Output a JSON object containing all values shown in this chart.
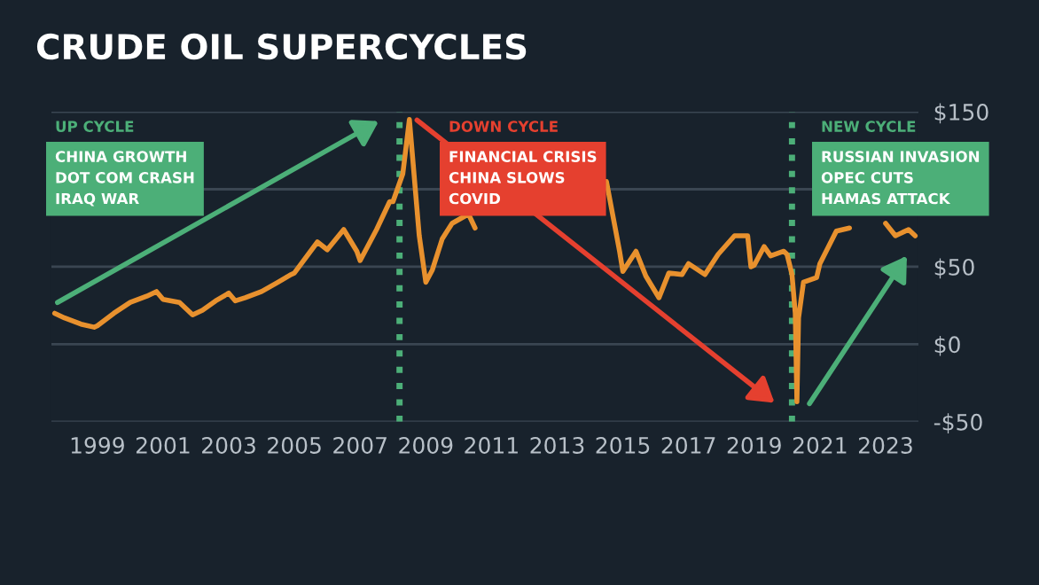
{
  "chart_data": {
    "type": "line",
    "title": "CRUDE OIL SUPERCYCLES",
    "x": [
      1997.7,
      1998.0,
      1998.5,
      1998.9,
      1999.0,
      1999.5,
      2000.0,
      2000.5,
      2000.8,
      2001.0,
      2001.5,
      2001.9,
      2002.2,
      2002.6,
      2003.0,
      2003.2,
      2003.5,
      2004.0,
      2004.5,
      2004.9,
      2005.0,
      2005.7,
      2006.0,
      2006.5,
      2006.9,
      2007.0,
      2007.5,
      2007.9,
      2008.0,
      2008.3,
      2008.5,
      2008.6,
      2008.8,
      2009.0,
      2009.2,
      2009.5,
      2009.8,
      2010.3,
      2010.5,
      2011.0,
      2011.3,
      2011.7,
      2012.2,
      2012.5,
      2012.8,
      2013.2,
      2013.7,
      2014.0,
      2014.5,
      2014.9,
      2015.0,
      2015.4,
      2015.7,
      2016.1,
      2016.4,
      2016.8,
      2017.0,
      2017.5,
      2017.9,
      2018.4,
      2018.8,
      2018.9,
      2019.0,
      2019.3,
      2019.5,
      2019.9,
      2020.0,
      2020.15,
      2020.25,
      2020.3,
      2020.35,
      2020.5,
      2020.9,
      2021.0,
      2021.5,
      2021.9,
      2022.2,
      2022.5,
      2022.7,
      2023.0,
      2023.3,
      2023.7,
      2023.9
    ],
    "series": [
      {
        "color": "#e8912e",
        "values": [
          20,
          17,
          13,
          11,
          12,
          20,
          27,
          31,
          34,
          29,
          27,
          19,
          22,
          28,
          33,
          28,
          30,
          34,
          40,
          45,
          46,
          66,
          61,
          74,
          60,
          54,
          74,
          92,
          92,
          110,
          145,
          120,
          70,
          40,
          48,
          68,
          78,
          84,
          75,
          null,
          null,
          null,
          null,
          null,
          null,
          null,
          null,
          null,
          105,
          60,
          47,
          60,
          44,
          30,
          46,
          45,
          52,
          45,
          58,
          70,
          70,
          50,
          51,
          63,
          57,
          60,
          58,
          45,
          20,
          -37,
          17,
          40,
          43,
          52,
          73,
          75,
          null,
          null,
          null,
          78,
          70,
          74,
          70
        ]
      }
    ],
    "xlim": [
      1997.6,
      2024.0
    ],
    "xticks": [
      1999,
      2001,
      2003,
      2005,
      2007,
      2009,
      2011,
      2013,
      2015,
      2017,
      2019,
      2021,
      2023
    ],
    "ylim": [
      -50,
      150
    ],
    "yticks": [
      {
        "value": 150,
        "label": "$150"
      },
      {
        "value": 100,
        "label": null
      },
      {
        "value": 50,
        "label": "$50"
      },
      {
        "value": 0,
        "label": "$0"
      },
      {
        "value": -50,
        "label": "-$50"
      }
    ],
    "grid": "y",
    "legend": false,
    "marker": "none",
    "line_style": "solid",
    "ref_lines": [
      {
        "axis": "x",
        "value": 2008.2,
        "color": "#4caf78",
        "line_style": "dotted"
      },
      {
        "axis": "x",
        "value": 2020.15,
        "color": "#4caf78",
        "line_style": "dotted"
      }
    ],
    "annotations": [
      "UP CYCLE",
      "CHINA GROWTH\nDOT COM CRASH\nIRAQ WAR",
      "DOWN CYCLE",
      "FINANCIAL CRISIS\nCHINA SLOWS\nCOVID",
      "NEW CYCLE",
      "RUSSIAN INVASION\nOPEC CUTS\nHAMAS ATTACK"
    ]
  }
}
